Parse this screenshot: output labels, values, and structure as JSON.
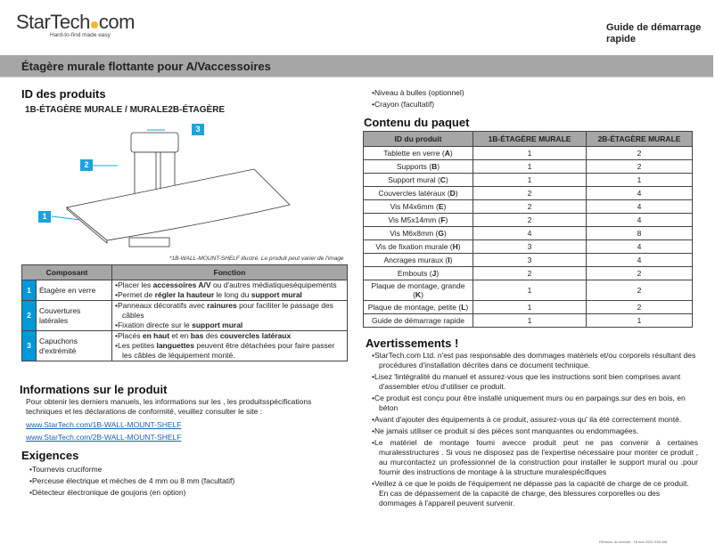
{
  "header": {
    "logo_text": "StarTech.com",
    "logo_tagline": "Hard-to-find made easy",
    "guide_title": "Guide de démarrage rapide"
  },
  "banner": {
    "title": "Étagère murale flottante pour A/Vaccessoires"
  },
  "product_id": {
    "heading": "ID des produits",
    "models": "1B-ÉTAGÈRE MURALE /  MURALE2B-ÉTAGÈRE",
    "callouts": [
      "1",
      "2",
      "3"
    ],
    "caption": "*1B-WALL-MOUNT-SHELF illustré. Le produit peut varier de l'image",
    "accent_color": "#0099d8"
  },
  "components": {
    "headers": [
      "Composant",
      "Fonction"
    ],
    "rows": [
      {
        "num": "1",
        "name": "Étagère en verre",
        "functions": [
          "Placer les <b>accessoires A/V</b> ou d'autres médiatiqueséquipements",
          "Permet de <b>régler la hauteur</b> le long du <b>support mural</b>"
        ]
      },
      {
        "num": "2",
        "name": "Couvertures latérales",
        "functions": [
          "Panneaux décoratifs avec <b>rainures</b> pour faciliter le passage des câbles",
          "Fixation directe sur le <b>support mural</b>"
        ]
      },
      {
        "num": "3",
        "name": "Capuchons d'extrémité",
        "functions": [
          "Placés <b>en haut</b> et en <b>bas</b> des <b>couvercles latéraux</b>",
          "Les petites <b>languettes</b> peuvent être détachées pour faire passer les câbles de léquipement monté."
        ]
      }
    ]
  },
  "info": {
    "heading": "Informations sur le produit",
    "text": "Pour obtenir les derniers manuels, les informations sur les , les produitsspécifications techniques et les déclarations de conformité, veuillez consulter le site :",
    "links": [
      "www.StarTech.com/1B-WALL-MOUNT-SHELF",
      "www.StarTech.com/2B-WALL-MOUNT-SHELF"
    ]
  },
  "requirements": {
    "heading": "Exigences",
    "items": [
      "Tournevis cruciforme",
      "Perceuse électrique et mèches de 4 mm ou 8 mm (facultatif)",
      "Détecteur électronique de goujons (en option)",
      "Niveau à bulles (optionnel)",
      "Crayon (facultatif)"
    ]
  },
  "package": {
    "heading": "Contenu du paquet",
    "headers": [
      "ID du produit",
      "1B-ÉTAGÈRE MURALE",
      "2B-ÉTAGÈRE MURALE"
    ],
    "rows": [
      [
        "Tablette en verre (<b>A</b>)",
        "1",
        "2"
      ],
      [
        "Supports (<b>B</b>)",
        "1",
        "2"
      ],
      [
        "Support mural (<b>C</b>)",
        "1",
        "1"
      ],
      [
        "Couvercles latéraux (<b>D</b>)",
        "2",
        "4"
      ],
      [
        "Vis M4x6mm (<b>E</b>)",
        "2",
        "4"
      ],
      [
        "Vis M5x14mm (<b>F</b>)",
        "2",
        "4"
      ],
      [
        "Vis M6x8mm (<b>G</b>)",
        "4",
        "8"
      ],
      [
        "Vis de fixation murale (<b>H</b>)",
        "3",
        "4"
      ],
      [
        "Ancrages muraux (<b>I</b>)",
        "3",
        "4"
      ],
      [
        "Embouts (<b>J</b>)",
        "2",
        "2"
      ],
      [
        "Plaque de montage, grande (<b>K</b>)",
        "1",
        "2"
      ],
      [
        "Plaque de montage, petite (<b>L</b>)",
        "1",
        "2"
      ],
      [
        "Guide de démarrage rapide",
        "1",
        "1"
      ]
    ]
  },
  "warnings": {
    "heading": "Avertissements !",
    "items": [
      "StarTech.com Ltd. n'est pas responsable des dommages matériels et/ou corporels résultant des procédures d'installation décrites dans ce document technique.",
      "Lisez 'lintégralité du manuel et assurez-vous que les instructions sont bien comprises avant d'assembler et/ou d'utiliser ce produit.",
      "Ce produit est conçu pour être installé uniquement murs ou en parpaings.sur des en bois, en béton",
      "Avant d'ajouter des équipements à ce produit, assurez-vous qu' ila été correctement monté.",
      "Ne jamais utiliser ce produit si des pièces sont manquantes ou endommagées.",
      "Le matériel de montage foumi   avecce produit peut ne pas convenir à certaines muralesstructures . Si vous ne disposez pas de l'expertise nécessaire pour monter ce produit , au murcontactez un professionnel de la construction pour installer le support mural ou .pour fournir des instructions de montage à la structure muralespécifiques",
      "Veillez à ce que le poids de l'équipement ne dépasse pas la capacité de charge de ce produit. En cas de dépassement de la capacité de charge, des blessures corporelles ou des dommages à l'appareil peuvent survenir."
    ]
  },
  "footer": {
    "revision": "Révision du manuel : 16 mai 2024 9:53 AM"
  }
}
